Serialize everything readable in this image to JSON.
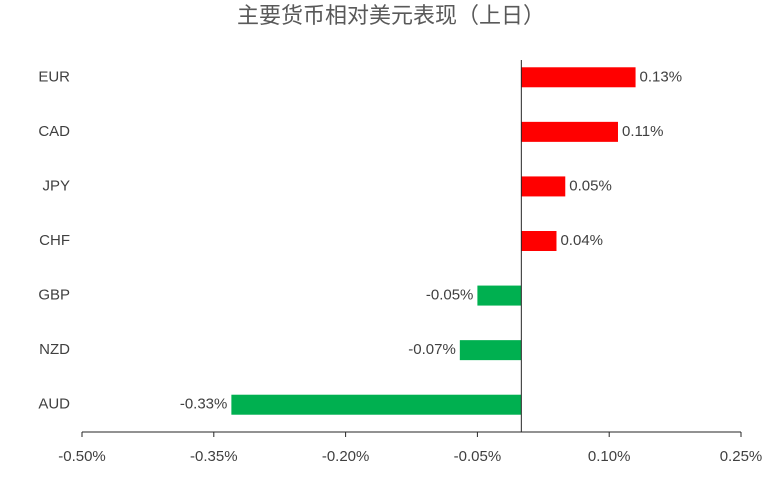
{
  "chart_data": {
    "type": "hbar",
    "title": "主要货币相对美元表现（上日）",
    "categories": [
      "EUR",
      "CAD",
      "JPY",
      "CHF",
      "GBP",
      "NZD",
      "AUD"
    ],
    "values": [
      0.13,
      0.11,
      0.05,
      0.04,
      -0.05,
      -0.07,
      -0.33
    ],
    "value_labels": [
      "0.13%",
      "0.11%",
      "0.05%",
      "0.04%",
      "-0.05%",
      "-0.07%",
      "-0.33%"
    ],
    "colors": [
      "#ff0000",
      "#ff0000",
      "#ff0000",
      "#ff0000",
      "#00b050",
      "#00b050",
      "#00b050"
    ],
    "xlim": [
      -0.5,
      0.25
    ],
    "xticks": [
      {
        "value": -0.5,
        "label": "-0.50%"
      },
      {
        "value": -0.35,
        "label": "-0.35%"
      },
      {
        "value": -0.2,
        "label": "-0.20%"
      },
      {
        "value": -0.05,
        "label": "-0.05%"
      },
      {
        "value": 0.1,
        "label": "0.10%"
      },
      {
        "value": 0.25,
        "label": "0.25%"
      }
    ],
    "grid": false
  }
}
